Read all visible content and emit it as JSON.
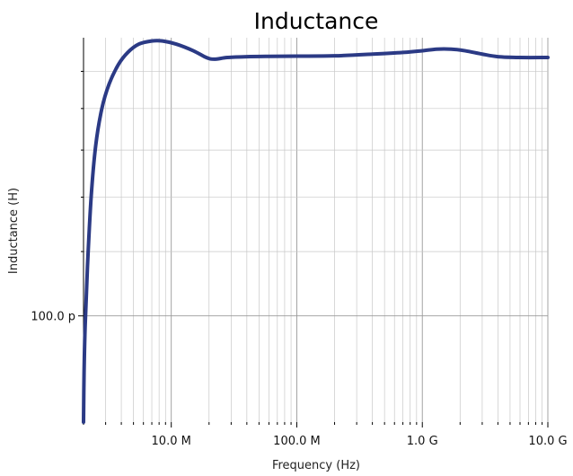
{
  "chart_data": {
    "type": "line",
    "title": "Inductance",
    "xlabel": "Frequency (Hz)",
    "ylabel": "Inductance (H)",
    "x_scale": "log",
    "y_scale": "log",
    "xlim": [
      2000000,
      10000000000
    ],
    "ylim": [
      7.4e-11,
      2.2e-10
    ],
    "grid": true,
    "x_ticks": [
      {
        "value": 10000000,
        "label": "10.0 M"
      },
      {
        "value": 100000000,
        "label": "100.0 M"
      },
      {
        "value": 1000000000,
        "label": "1.0 G"
      },
      {
        "value": 10000000000,
        "label": "10.0 G"
      }
    ],
    "y_ticks": [
      {
        "value": 1e-10,
        "label": "100.0 p"
      }
    ],
    "y_minor_ticks": [
      1.2e-10,
      1.4e-10,
      1.6e-10,
      1.8e-10,
      2e-10
    ],
    "colors": {
      "series": "#2b3a85"
    },
    "series": [
      {
        "name": "",
        "x": [
          2000000,
          2020000,
          2060000,
          2150000,
          2300000,
          2500000,
          2800000,
          3200000,
          3800000,
          4500000,
          5500000,
          7000000,
          8500000,
          11000000,
          15000000,
          19000000,
          22000000,
          28000000,
          40000000,
          60000000,
          100000000,
          200000000,
          400000000,
          700000000,
          1000000000,
          1300000000,
          1700000000,
          2200000000,
          3000000000,
          4000000000,
          6000000000,
          10000000000
        ],
        "y": [
          7.4e-11,
          8.5e-11,
          9.7e-11,
          1.15e-10,
          1.4e-10,
          1.62e-10,
          1.8e-10,
          1.93e-10,
          2.04e-10,
          2.11e-10,
          2.16e-10,
          2.18e-10,
          2.18e-10,
          2.16e-10,
          2.12e-10,
          2.08e-10,
          2.07e-10,
          2.08e-10,
          2.085e-10,
          2.087e-10,
          2.088e-10,
          2.09e-10,
          2.1e-10,
          2.11e-10,
          2.12e-10,
          2.13e-10,
          2.13e-10,
          2.12e-10,
          2.1e-10,
          2.085e-10,
          2.08e-10,
          2.08e-10
        ]
      }
    ]
  }
}
